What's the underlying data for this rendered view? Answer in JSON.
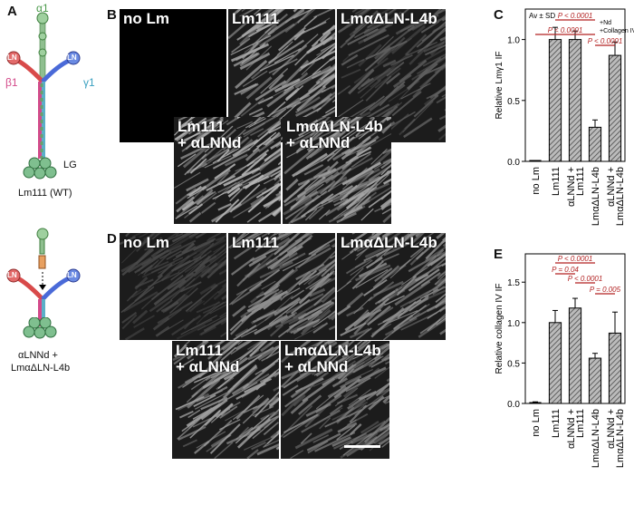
{
  "panels": {
    "A": "A",
    "B": "B",
    "C": "C",
    "D": "D",
    "E": "E"
  },
  "schematic": {
    "alpha1": "α1",
    "beta1": "β1",
    "gamma1": "γ1",
    "ln": "LN",
    "lg": "LG",
    "wt_label": "Lm111 (WT)",
    "mut_label_1": "αLNNd +",
    "mut_label_2": "LmαΔLN-L4b",
    "colors": {
      "alpha": "#6aa06a",
      "beta": "#d34a8a",
      "gamma": "#5ab0c8",
      "ln_red": "#d84a4a",
      "ln_blue": "#4a6ad8",
      "lg": "#7fbf8f"
    }
  },
  "micrographs_B": [
    {
      "label": "no Lm",
      "shade": "#000000"
    },
    {
      "label": "Lm111",
      "shade": "#a9a9a9"
    },
    {
      "label": "LmαΔLN-L4b",
      "shade": "#5f5f5f"
    },
    {
      "label": "Lm111\n+ αLNNd",
      "shade": "#b8b8b8"
    },
    {
      "label": "LmαΔLN-L4b\n+ αLNNd",
      "shade": "#a6a6a6"
    }
  ],
  "micrographs_D": [
    {
      "label": "no Lm",
      "shade": "#4a4a4a"
    },
    {
      "label": "Lm111",
      "shade": "#8f8f8f"
    },
    {
      "label": "LmαΔLN-L4b",
      "shade": "#909090"
    },
    {
      "label": "Lm111\n+ αLNNd",
      "shade": "#a0a0a0"
    },
    {
      "label": "LmαΔLN-L4b\n+ αLNNd",
      "shade": "#8a8a8a"
    }
  ],
  "chart_data": [
    {
      "type": "bar",
      "ylabel": "Relative Lmγ1 IF",
      "categories": [
        "no Lm",
        "Lm111",
        "αLNNd +\nLm111",
        "LmαΔLN-L4b",
        "αLNNd +\nLmαΔLN-L4b"
      ],
      "values": [
        0.0,
        1.0,
        1.0,
        0.28,
        0.87
      ],
      "errors": [
        0.0,
        0.1,
        0.07,
        0.06,
        0.11
      ],
      "ylim": [
        0,
        1.25
      ],
      "yticks": [
        "0.0",
        "0.5",
        "1.0"
      ],
      "legend": [
        "Av ± SD"
      ],
      "annotations": [
        {
          "text": "P < 0.0001",
          "from": 1,
          "to": 3
        },
        {
          "text": "P < 0.0001",
          "from": 0,
          "to": 3
        },
        {
          "text": "P < 0.0001",
          "from": 3,
          "to": 4
        }
      ],
      "side_note": [
        "+Nd",
        "+Collagen IV"
      ],
      "bracket_color": "#b22222"
    },
    {
      "type": "bar",
      "ylabel": "Relative collagen IV IF",
      "categories": [
        "no Lm",
        "Lm111",
        "αLNNd +\nLm111",
        "LmαΔLN-L4b",
        "αLNNd +\nLmαΔLN-L4b"
      ],
      "values": [
        0.0,
        1.0,
        1.18,
        0.56,
        0.87
      ],
      "errors": [
        0.02,
        0.15,
        0.12,
        0.06,
        0.26
      ],
      "ylim": [
        0,
        1.85
      ],
      "yticks": [
        "0.0",
        "0.5",
        "1.0",
        "1.5"
      ],
      "annotations": [
        {
          "text": "P < 0.0001",
          "from": 1,
          "to": 3
        },
        {
          "text": "P = 0.04",
          "from": 1,
          "to": 2
        },
        {
          "text": "P < 0.0001",
          "from": 2,
          "to": 3
        },
        {
          "text": "P = 0.005",
          "from": 3,
          "to": 4
        }
      ],
      "bracket_color": "#b22222"
    }
  ]
}
